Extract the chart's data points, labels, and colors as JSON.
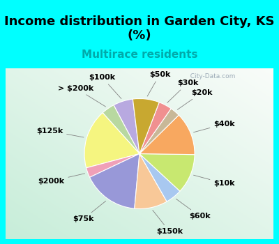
{
  "title": "Income distribution in Garden City, KS\n(%)",
  "subtitle": "Multirace residents",
  "subtitle_color": "#00AAAA",
  "title_fontsize": 13,
  "subtitle_fontsize": 11,
  "bg_cyan": "#00FFFF",
  "bg_chart_color1": "#c8e8d8",
  "bg_chart_color2": "#e8f8f0",
  "watermark": "◼ City-Data.com",
  "labels": [
    "$100k",
    "> $200k",
    "$125k",
    "$200k",
    "$75k",
    "$150k",
    "$60k",
    "$10k",
    "$40k",
    "$20k",
    "$30k",
    "$50k"
  ],
  "sizes": [
    6,
    4,
    18,
    3,
    17,
    10,
    5,
    12,
    13,
    3,
    4,
    8
  ],
  "colors": [
    "#b8a9e0",
    "#b8d8a0",
    "#f5f580",
    "#f0a0b8",
    "#9898d8",
    "#f8c898",
    "#a8c8f0",
    "#c8e870",
    "#f8a860",
    "#c8b898",
    "#f09090",
    "#c8a830"
  ],
  "label_fontsize": 8,
  "startangle": 97
}
